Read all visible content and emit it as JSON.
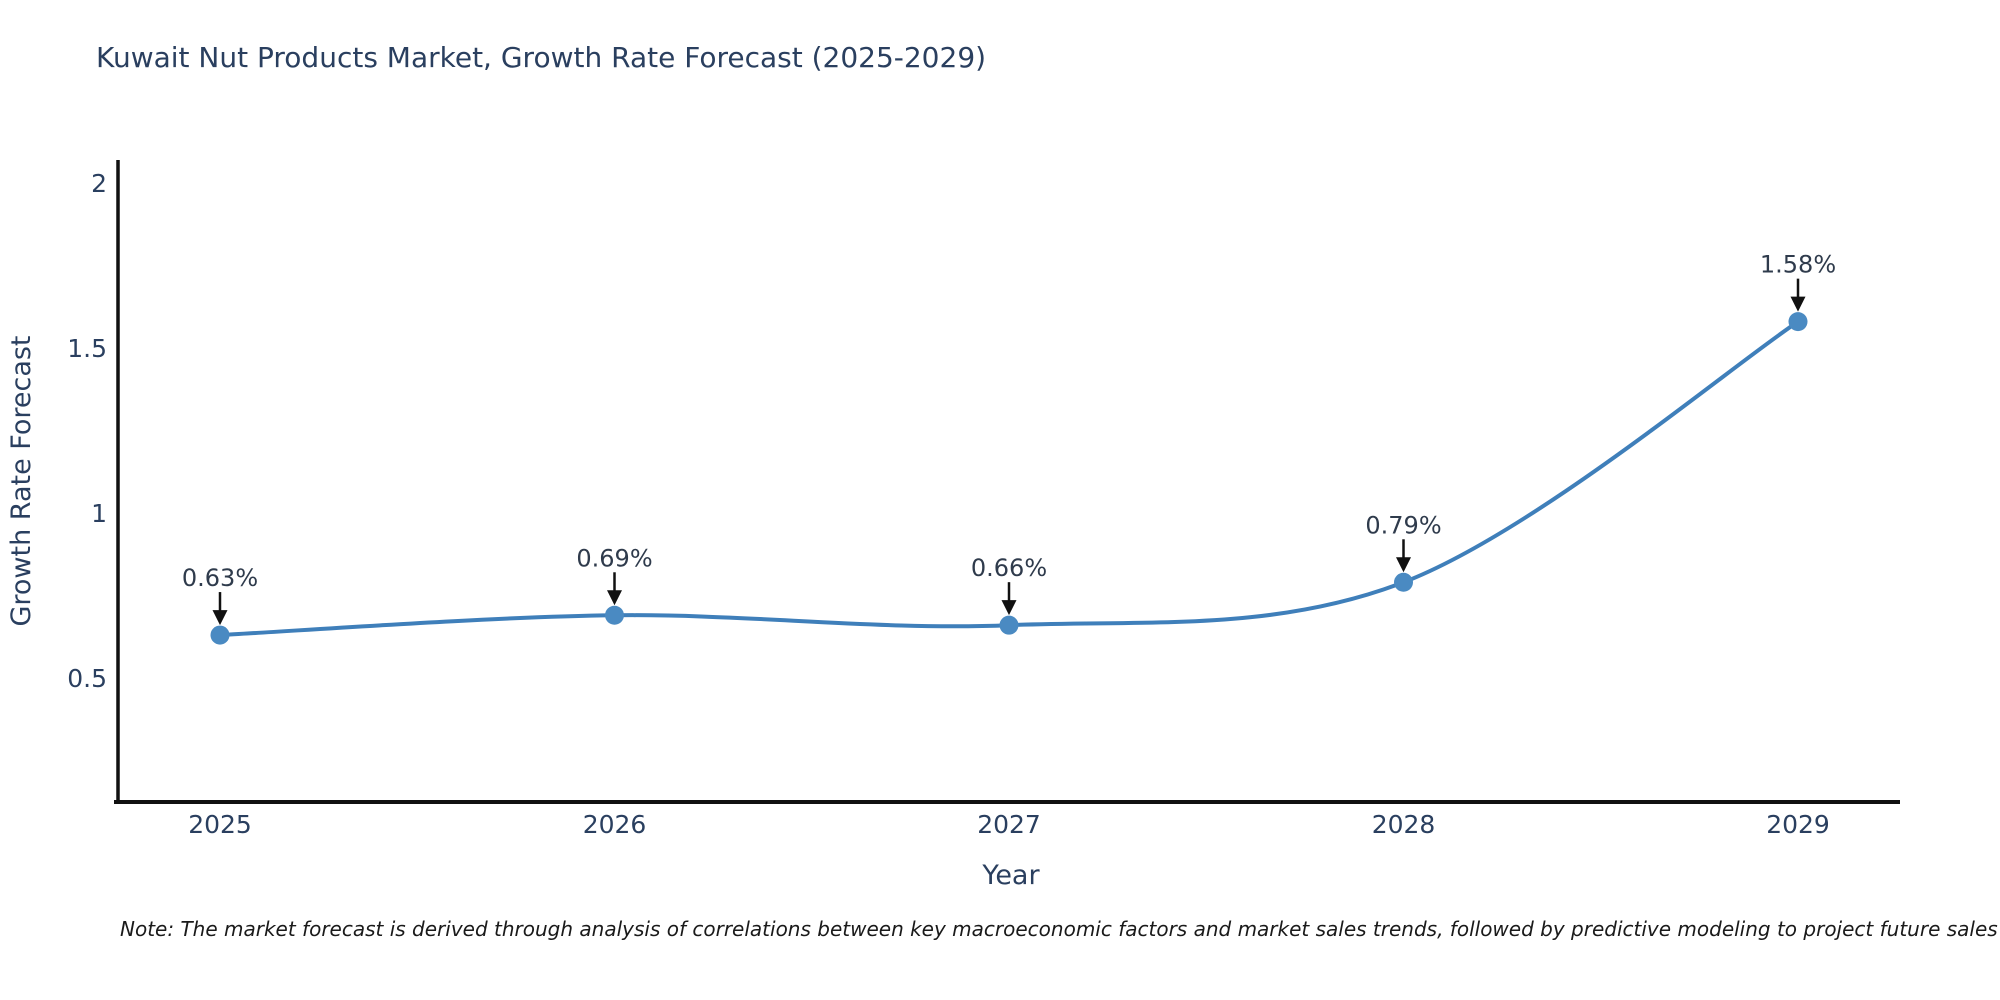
{
  "chart": {
    "title": "Kuwait Nut Products Market, Growth Rate Forecast (2025-2029)",
    "x_axis_title": "Year",
    "y_axis_title": "Growth Rate Forecast",
    "note": "Note: The market forecast is derived through analysis of correlations between key macroeconomic factors and market sales trends, followed by predictive modeling to project future sales"
  },
  "chart_data": {
    "type": "line",
    "title": "Kuwait Nut Products Market, Growth Rate Forecast (2025-2029)",
    "xlabel": "Year",
    "ylabel": "Growth Rate Forecast",
    "categories": [
      "2025",
      "2026",
      "2027",
      "2028",
      "2029"
    ],
    "series": [
      {
        "name": "Growth Rate Forecast",
        "values": [
          0.63,
          0.69,
          0.66,
          0.79,
          1.58
        ],
        "point_labels": [
          "0.63%",
          "0.69%",
          "0.66%",
          "0.79%",
          "1.58%"
        ]
      }
    ],
    "y_ticks": [
      {
        "label": "0.5",
        "value": 0.5
      },
      {
        "label": "1",
        "value": 1
      },
      {
        "label": "1.5",
        "value": 1.5
      },
      {
        "label": "2",
        "value": 2
      }
    ],
    "ylim": [
      0.124,
      2.07
    ],
    "line_shape": "spline",
    "markers": true,
    "grid": false,
    "legend_position": "none",
    "annotation_arrows": true,
    "colors": {
      "line": "#3f7fba",
      "marker": "#4a8ac2",
      "axis_line": "#111111",
      "arrow": "#111111",
      "text": "#2a3f5f",
      "annotation_text": "#2f3b4c",
      "note_text": "#1a1a1a",
      "background": "#ffffff"
    }
  }
}
